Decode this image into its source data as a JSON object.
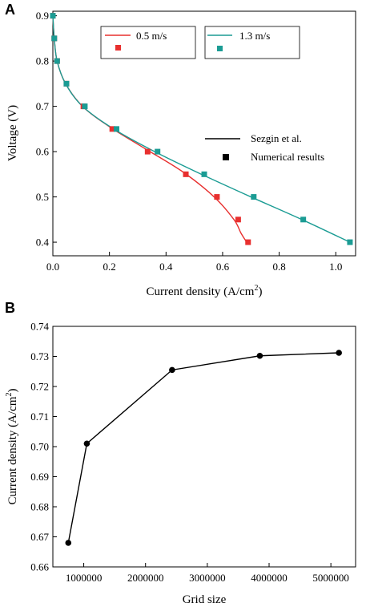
{
  "chart_data": [
    {
      "panel": "A",
      "type": "line",
      "xlabel_base": "Current density (A/cm",
      "xlabel_sup": "2",
      "xlabel_end": ")",
      "ylabel": "Voltage (V)",
      "xlim": [
        0,
        1.07
      ],
      "ylim": [
        0.37,
        0.91
      ],
      "xticks": [
        0.0,
        0.2,
        0.4,
        0.6,
        0.8,
        1.0
      ],
      "xtick_labels": [
        "0.0",
        "0.2",
        "0.4",
        "0.6",
        "0.8",
        "1.0"
      ],
      "yticks": [
        0.4,
        0.5,
        0.6,
        0.7,
        0.8,
        0.9
      ],
      "ytick_labels": [
        "0.4",
        "0.5",
        "0.6",
        "0.7",
        "0.8",
        "0.9"
      ],
      "legend_left_label": "0.5 m/s",
      "legend_right_label": "1.3 m/s",
      "legend_type_line": "Sezgin et al.",
      "legend_type_marker": "Numerical results",
      "series": [
        {
          "name": "0.5 m/s",
          "color": "#e8302f",
          "line_x": [
            0.0,
            0.005,
            0.015,
            0.045,
            0.105,
            0.2,
            0.33,
            0.46,
            0.57,
            0.64,
            0.665,
            0.685
          ],
          "line_y": [
            0.9,
            0.85,
            0.8,
            0.75,
            0.7,
            0.655,
            0.605,
            0.555,
            0.5,
            0.45,
            0.42,
            0.4
          ],
          "x": [
            0.0,
            0.005,
            0.015,
            0.048,
            0.108,
            0.21,
            0.335,
            0.47,
            0.58,
            0.655,
            0.69
          ],
          "y": [
            0.9,
            0.85,
            0.8,
            0.75,
            0.7,
            0.65,
            0.6,
            0.55,
            0.5,
            0.45,
            0.4
          ]
        },
        {
          "name": "1.3 m/s",
          "color": "#1b9c94",
          "line_x": [
            0.0,
            0.005,
            0.015,
            0.045,
            0.105,
            0.215,
            0.36,
            0.525,
            0.7,
            0.88,
            1.05
          ],
          "line_y": [
            0.9,
            0.85,
            0.8,
            0.75,
            0.7,
            0.65,
            0.6,
            0.55,
            0.5,
            0.45,
            0.4
          ],
          "x": [
            0.0,
            0.005,
            0.015,
            0.048,
            0.113,
            0.225,
            0.37,
            0.535,
            0.71,
            0.885,
            1.05
          ],
          "y": [
            0.9,
            0.85,
            0.8,
            0.75,
            0.7,
            0.65,
            0.6,
            0.55,
            0.5,
            0.45,
            0.4
          ]
        }
      ]
    },
    {
      "panel": "B",
      "type": "line",
      "xlabel": "Grid size",
      "ylabel_base": "Current density (A/cm",
      "ylabel_sup": "2",
      "ylabel_end": ")",
      "xlim": [
        500000,
        5400000
      ],
      "ylim": [
        0.66,
        0.74
      ],
      "xticks": [
        1000000,
        2000000,
        3000000,
        4000000,
        5000000
      ],
      "xtick_labels": [
        "1000000",
        "2000000",
        "3000000",
        "4000000",
        "5000000"
      ],
      "yticks": [
        0.66,
        0.67,
        0.68,
        0.69,
        0.7,
        0.71,
        0.72,
        0.73,
        0.74
      ],
      "ytick_labels": [
        "0.66",
        "0.67",
        "0.68",
        "0.69",
        "0.70",
        "0.71",
        "0.72",
        "0.73",
        "0.74"
      ],
      "series": [
        {
          "color": "#000000",
          "x": [
            750000,
            1050000,
            2430000,
            3850000,
            5130000
          ],
          "y": [
            0.668,
            0.701,
            0.7255,
            0.7302,
            0.7312
          ]
        }
      ]
    }
  ]
}
